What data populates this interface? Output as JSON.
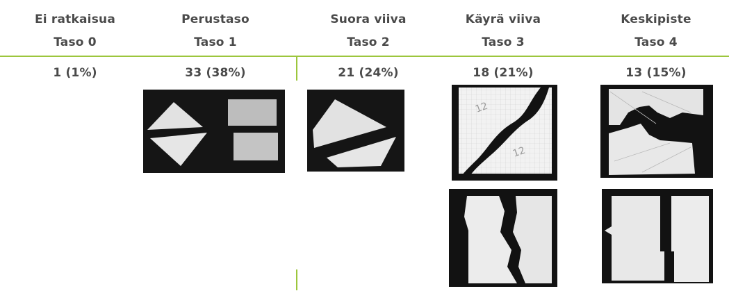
{
  "columns": [
    {
      "title": "Ei ratkaisua",
      "level": "Taso 0",
      "count": "1 (1%)"
    },
    {
      "title": "Perustaso",
      "level": "Taso 1",
      "count": "33 (38%)"
    },
    {
      "title": "Suora viiva",
      "level": "Taso 2",
      "count": "21 (24%)"
    },
    {
      "title": "Käyrä viiva",
      "level": "Taso 3",
      "count": "18 (21%)"
    },
    {
      "title": "Keskipiste",
      "level": "Taso 4",
      "count": "13 (15%)"
    }
  ],
  "photos": {
    "curve_top_label_a": "12",
    "curve_top_label_b": "12"
  },
  "colors": {
    "accent_rule": "#9cc63c",
    "text": "#4a4a4a",
    "photo_black": "#111111",
    "paper": "#e4e4e4"
  }
}
